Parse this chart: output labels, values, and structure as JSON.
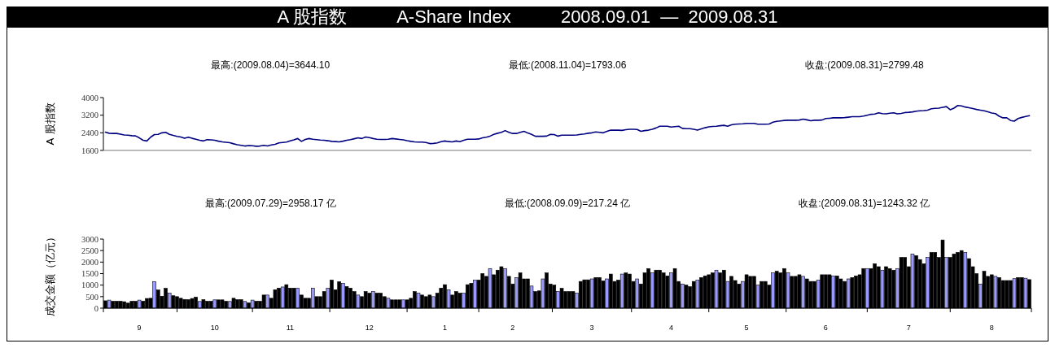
{
  "chart_data": [
    {
      "type": "line",
      "title": "A 股指数          A-Share Index          2008.09.01  —  2009.08.31",
      "ylabel": "A 股指数",
      "annotations": [
        "最高:(2009.08.04)=3644.10",
        "最低:(2008.11.04)=1793.06",
        "收盘:(2009.08.31)=2799.48"
      ],
      "color": "#000080",
      "ylim": [
        1600,
        4000
      ],
      "yticks": [
        1600,
        2400,
        3200,
        4000
      ],
      "tick_labels": "y",
      "categories": [
        null,
        null,
        null,
        null,
        null,
        null,
        null,
        null,
        null,
        "9",
        null,
        null,
        null,
        null,
        null,
        null,
        null,
        null,
        null,
        null,
        null,
        null,
        null,
        null,
        null,
        null,
        null,
        null,
        null,
        "10",
        null,
        null,
        null,
        null,
        null,
        null,
        null,
        null,
        null,
        null,
        null,
        null,
        null,
        null,
        null,
        null,
        null,
        null,
        null,
        "11",
        null,
        null,
        null,
        null,
        null,
        null,
        null,
        null,
        null,
        null,
        null,
        null,
        null,
        null,
        null,
        null,
        null,
        null,
        null,
        null,
        "12",
        null,
        null,
        null,
        null,
        null,
        null,
        null,
        null,
        null,
        null,
        null,
        null,
        null,
        null,
        null,
        null,
        null,
        null,
        null,
        "1",
        null,
        null,
        null,
        null,
        null,
        null,
        null,
        null,
        null,
        null,
        null,
        null,
        null,
        null,
        null,
        null,
        null,
        "2",
        null,
        null,
        null,
        null,
        null,
        null,
        null,
        null,
        null,
        null,
        null,
        null,
        null,
        null,
        null,
        null,
        null,
        null,
        null,
        null,
        "3",
        null,
        null,
        null,
        null,
        null,
        null,
        null,
        null,
        null,
        null,
        null,
        null,
        null,
        null,
        null,
        null,
        null,
        null,
        null,
        null,
        "4",
        null,
        null,
        null,
        null,
        null,
        null,
        null,
        null,
        null,
        null,
        null,
        null,
        null,
        null,
        null,
        null,
        null,
        null,
        null,
        "5",
        null,
        null,
        null,
        null,
        null,
        null,
        null,
        null,
        null,
        null,
        null,
        null,
        null,
        null,
        null,
        null,
        null,
        null,
        null,
        null,
        "6",
        null,
        null,
        null,
        null,
        null,
        null,
        null,
        null,
        null,
        null,
        null,
        null,
        null,
        null,
        null,
        null,
        null,
        null,
        null,
        null,
        null,
        "7",
        null,
        null,
        null,
        null,
        null,
        null,
        null,
        null,
        null,
        null,
        null,
        null,
        null,
        null,
        null,
        null,
        null,
        null,
        null,
        null,
        null,
        "8",
        null,
        null,
        null,
        null,
        null,
        null,
        null,
        null,
        null,
        null
      ],
      "values": [
        2430,
        2380,
        2370,
        2370,
        2340,
        2300,
        2290,
        2270,
        2260,
        2170,
        2060,
        2030,
        2200,
        2320,
        2330,
        2400,
        2420,
        2330,
        2280,
        2240,
        2210,
        2150,
        2200,
        2150,
        2110,
        2060,
        2030,
        2090,
        2080,
        2060,
        2020,
        1990,
        1970,
        1950,
        1900,
        1860,
        1830,
        1800,
        1820,
        1810,
        1790,
        1800,
        1830,
        1800,
        1850,
        1880,
        1940,
        1960,
        1980,
        2030,
        2080,
        2140,
        2010,
        2100,
        2140,
        2110,
        2090,
        2070,
        2060,
        2040,
        2010,
        2000,
        1990,
        2020,
        2060,
        2090,
        2130,
        2170,
        2140,
        2210,
        2180,
        2140,
        2110,
        2100,
        2100,
        2110,
        2140,
        2120,
        2100,
        2080,
        2040,
        2010,
        1990,
        1980,
        1980,
        1960,
        1910,
        1920,
        1940,
        2000,
        2030,
        2000,
        1990,
        2030,
        2000,
        2060,
        2110,
        2110,
        2110,
        2120,
        2170,
        2200,
        2250,
        2330,
        2380,
        2420,
        2500,
        2420,
        2370,
        2370,
        2420,
        2470,
        2390,
        2330,
        2240,
        2240,
        2240,
        2250,
        2330,
        2320,
        2250,
        2290,
        2290,
        2290,
        2290,
        2300,
        2330,
        2350,
        2380,
        2400,
        2440,
        2420,
        2400,
        2470,
        2520,
        2520,
        2520,
        2510,
        2540,
        2560,
        2560,
        2550,
        2470,
        2500,
        2520,
        2560,
        2620,
        2700,
        2700,
        2700,
        2660,
        2680,
        2700,
        2600,
        2590,
        2590,
        2560,
        2520,
        2580,
        2630,
        2670,
        2690,
        2700,
        2720,
        2740,
        2700,
        2760,
        2790,
        2800,
        2810,
        2830,
        2830,
        2830,
        2790,
        2790,
        2790,
        2800,
        2880,
        2920,
        2940,
        2960,
        2970,
        2970,
        2970,
        2980,
        3020,
        2990,
        2950,
        2970,
        2970,
        2980,
        3050,
        3060,
        3080,
        3080,
        3080,
        3090,
        3110,
        3130,
        3130,
        3130,
        3160,
        3200,
        3240,
        3250,
        3310,
        3270,
        3260,
        3290,
        3310,
        3260,
        3280,
        3320,
        3330,
        3350,
        3380,
        3400,
        3410,
        3430,
        3490,
        3510,
        3520,
        3560,
        3590,
        3450,
        3520,
        3640,
        3620,
        3570,
        3540,
        3500,
        3460,
        3430,
        3400,
        3350,
        3300,
        3270,
        3150,
        3080,
        3080,
        2960,
        2930,
        3050,
        3100,
        3140,
        3180
      ]
    },
    {
      "type": "bar",
      "ylabel": "成交金额（亿元）",
      "annotations": [
        "最高:(2009.07.29)=2958.17 亿",
        "最低:(2008.09.09)=217.24 亿",
        "收盘:(2009.08.31)=1243.32 亿"
      ],
      "ylim": [
        0,
        3000
      ],
      "yticks": [
        0,
        500,
        1000,
        1500,
        2000,
        2500,
        3000
      ],
      "categories": [
        null,
        null,
        null,
        null,
        null,
        null,
        null,
        null,
        null,
        "9",
        null,
        null,
        null,
        null,
        null,
        null,
        null,
        null,
        null,
        null,
        null,
        null,
        null,
        null,
        null,
        null,
        null,
        null,
        null,
        "10",
        null,
        null,
        null,
        null,
        null,
        null,
        null,
        null,
        null,
        null,
        null,
        null,
        null,
        null,
        null,
        null,
        null,
        null,
        null,
        "11",
        null,
        null,
        null,
        null,
        null,
        null,
        null,
        null,
        null,
        null,
        null,
        null,
        null,
        null,
        null,
        null,
        null,
        null,
        null,
        null,
        "12",
        null,
        null,
        null,
        null,
        null,
        null,
        null,
        null,
        null,
        null,
        null,
        null,
        null,
        null,
        null,
        null,
        null,
        null,
        null,
        "1",
        null,
        null,
        null,
        null,
        null,
        null,
        null,
        null,
        null,
        null,
        null,
        null,
        null,
        null,
        null,
        null,
        null,
        "2",
        null,
        null,
        null,
        null,
        null,
        null,
        null,
        null,
        null,
        null,
        null,
        null,
        null,
        null,
        null,
        null,
        null,
        null,
        null,
        null,
        "3",
        null,
        null,
        null,
        null,
        null,
        null,
        null,
        null,
        null,
        null,
        null,
        null,
        null,
        null,
        null,
        null,
        null,
        null,
        null,
        null,
        "4",
        null,
        null,
        null,
        null,
        null,
        null,
        null,
        null,
        null,
        null,
        null,
        null,
        null,
        null,
        null,
        null,
        null,
        null,
        null,
        "5",
        null,
        null,
        null,
        null,
        null,
        null,
        null,
        null,
        null,
        null,
        null,
        null,
        null,
        null,
        null,
        null,
        null,
        null,
        null,
        null,
        "6",
        null,
        null,
        null,
        null,
        null,
        null,
        null,
        null,
        null,
        null,
        null,
        null,
        null,
        null,
        null,
        null,
        null,
        null,
        null,
        null,
        null,
        "7",
        null,
        null,
        null,
        null,
        null,
        null,
        null,
        null,
        null,
        null,
        null,
        null,
        null,
        null,
        null,
        null,
        null,
        null,
        null,
        null,
        null,
        "8",
        null,
        null,
        null,
        null,
        null,
        null,
        null,
        null,
        null,
        null
      ],
      "values": [
        320,
        350,
        300,
        300,
        300,
        280,
        220,
        300,
        300,
        350,
        300,
        420,
        430,
        1150,
        790,
        520,
        860,
        650,
        540,
        500,
        430,
        380,
        370,
        420,
        480,
        290,
        370,
        300,
        300,
        360,
        360,
        360,
        300,
        290,
        430,
        370,
        370,
        290,
        230,
        350,
        300,
        300,
        570,
        570,
        430,
        800,
        870,
        920,
        1020,
        870,
        870,
        870,
        570,
        430,
        430,
        870,
        500,
        500,
        720,
        870,
        1220,
        800,
        1150,
        1080,
        940,
        870,
        720,
        570,
        500,
        720,
        650,
        720,
        650,
        650,
        500,
        430,
        360,
        360,
        360,
        360,
        360,
        430,
        720,
        650,
        570,
        500,
        570,
        500,
        650,
        870,
        1020,
        800,
        570,
        720,
        650,
        650,
        1020,
        1080,
        1220,
        1220,
        1500,
        1380,
        1720,
        1450,
        1650,
        1800,
        1720,
        1380,
        1050,
        1330,
        1530,
        1270,
        1270,
        960,
        720,
        750,
        1270,
        1530,
        1050,
        1000,
        720,
        860,
        720,
        720,
        720,
        650,
        1160,
        1230,
        1230,
        1270,
        1330,
        1330,
        1180,
        1270,
        1480,
        1160,
        1220,
        1480,
        1530,
        1480,
        1160,
        1270,
        1050,
        1530,
        1720,
        1530,
        1650,
        1650,
        1530,
        1400,
        1530,
        1720,
        1160,
        1050,
        1000,
        930,
        1160,
        1220,
        1330,
        1400,
        1450,
        1530,
        1650,
        1530,
        1650,
        1160,
        1380,
        1200,
        1050,
        1160,
        1450,
        1380,
        1380,
        1000,
        1160,
        1160,
        1000,
        1530,
        1600,
        1530,
        1720,
        1530,
        1380,
        1380,
        1450,
        1380,
        1270,
        1160,
        1160,
        1220,
        1450,
        1450,
        1450,
        1400,
        1400,
        1270,
        1160,
        1270,
        1330,
        1400,
        1450,
        1720,
        1720,
        1720,
        1930,
        1800,
        1650,
        1800,
        1720,
        1650,
        1720,
        2200,
        2200,
        1800,
        2350,
        2280,
        2110,
        1930,
        2200,
        2420,
        2420,
        2200,
        2960,
        2200,
        2200,
        2350,
        2420,
        2500,
        2420,
        2150,
        1800,
        1500,
        1050,
        1600,
        1380,
        1450,
        1380,
        1330,
        1200,
        1200,
        1200,
        1280,
        1330,
        1330,
        1300,
        1240
      ],
      "colors": [
        "#000000",
        "#9999ff",
        "#000000",
        "#000000",
        "#000000",
        "#000000",
        "#000000",
        "#000000",
        "#000000",
        "#9999ff",
        "#000000",
        "#000000",
        "#000000",
        "#9999ff",
        "#000000",
        "#000000",
        "#000000",
        "#9999ff",
        "#000000",
        "#000000",
        "#000000",
        "#000000",
        "#000000",
        "#000000",
        "#000000",
        "#9999ff",
        "#000000",
        "#000000",
        "#000000",
        "#9999ff",
        "#000000",
        "#000000",
        "#000000",
        "#9999ff",
        "#000000",
        "#000000",
        "#000000",
        "#9999ff",
        "#000000",
        "#9999ff",
        "#000000",
        "#000000",
        "#000000",
        "#9999ff",
        "#000000",
        "#000000",
        "#000000",
        "#9999ff",
        "#000000",
        "#000000",
        "#000000",
        "#9999ff",
        "#000000",
        "#000000",
        "#000000",
        "#9999ff",
        "#000000",
        "#000000",
        "#000000",
        "#9999ff",
        "#000000",
        "#000000",
        "#000000",
        "#9999ff",
        "#000000",
        "#000000",
        "#000000",
        "#9999ff",
        "#000000",
        "#000000",
        "#000000",
        "#9999ff",
        "#000000",
        "#000000",
        "#000000",
        "#9999ff",
        "#000000",
        "#000000",
        "#000000",
        "#9999ff",
        "#000000",
        "#000000",
        "#000000",
        "#9999ff",
        "#000000",
        "#000000",
        "#000000",
        "#9999ff",
        "#000000",
        "#000000",
        "#000000",
        "#9999ff",
        "#000000",
        "#000000",
        "#000000",
        "#9999ff",
        "#000000",
        "#000000",
        "#9999ff",
        "#000000",
        "#000000",
        "#000000",
        "#9999ff",
        "#000000",
        "#000000",
        "#000000",
        "#9999ff",
        "#000000",
        "#000000",
        "#9999ff",
        "#000000",
        "#000000",
        "#000000",
        "#9999ff",
        "#000000",
        "#000000",
        "#9999ff",
        "#000000",
        "#000000",
        "#000000",
        "#9999ff",
        "#000000",
        "#000000",
        "#000000",
        "#000000",
        "#9999ff",
        "#000000",
        "#000000",
        "#000000",
        "#9999ff",
        "#000000",
        "#000000",
        "#000000",
        "#9999ff",
        "#000000",
        "#000000",
        "#000000",
        "#9999ff",
        "#000000",
        "#000000",
        "#000000",
        "#9999ff",
        "#000000",
        "#000000",
        "#000000",
        "#9999ff",
        "#000000",
        "#000000",
        "#000000",
        "#000000",
        "#9999ff",
        "#000000",
        "#000000",
        "#9999ff",
        "#000000",
        "#000000",
        "#000000",
        "#9999ff",
        "#000000",
        "#000000",
        "#000000",
        "#000000",
        "#9999ff",
        "#000000",
        "#000000",
        "#9999ff",
        "#000000",
        "#000000",
        "#000000",
        "#9999ff",
        "#000000",
        "#000000",
        "#000000",
        "#9999ff",
        "#000000",
        "#000000",
        "#000000",
        "#9999ff",
        "#000000",
        "#000000",
        "#000000",
        "#9999ff",
        "#000000",
        "#000000",
        "#000000",
        "#9999ff",
        "#000000",
        "#000000",
        "#000000",
        "#9999ff",
        "#000000",
        "#000000",
        "#000000",
        "#9999ff",
        "#000000",
        "#000000",
        "#000000",
        "#9999ff",
        "#000000",
        "#000000",
        "#000000",
        "#000000",
        "#9999ff",
        "#000000",
        "#000000",
        "#000000",
        "#9999ff",
        "#000000",
        "#000000",
        "#000000",
        "#9999ff",
        "#000000",
        "#000000",
        "#000000",
        "#9999ff",
        "#000000",
        "#000000",
        "#000000",
        "#9999ff",
        "#000000",
        "#000000",
        "#000000",
        "#000000",
        "#9999ff",
        "#000000",
        "#000000",
        "#000000",
        "#000000",
        "#9999ff",
        "#000000",
        "#000000",
        "#000000",
        "#9999ff",
        "#000000",
        "#000000",
        "#000000",
        "#9999ff",
        "#000000",
        "#000000",
        "#000000",
        "#000000",
        "#9999ff",
        "#000000",
        "#000000",
        "#9999ff",
        "#000000"
      ]
    }
  ]
}
